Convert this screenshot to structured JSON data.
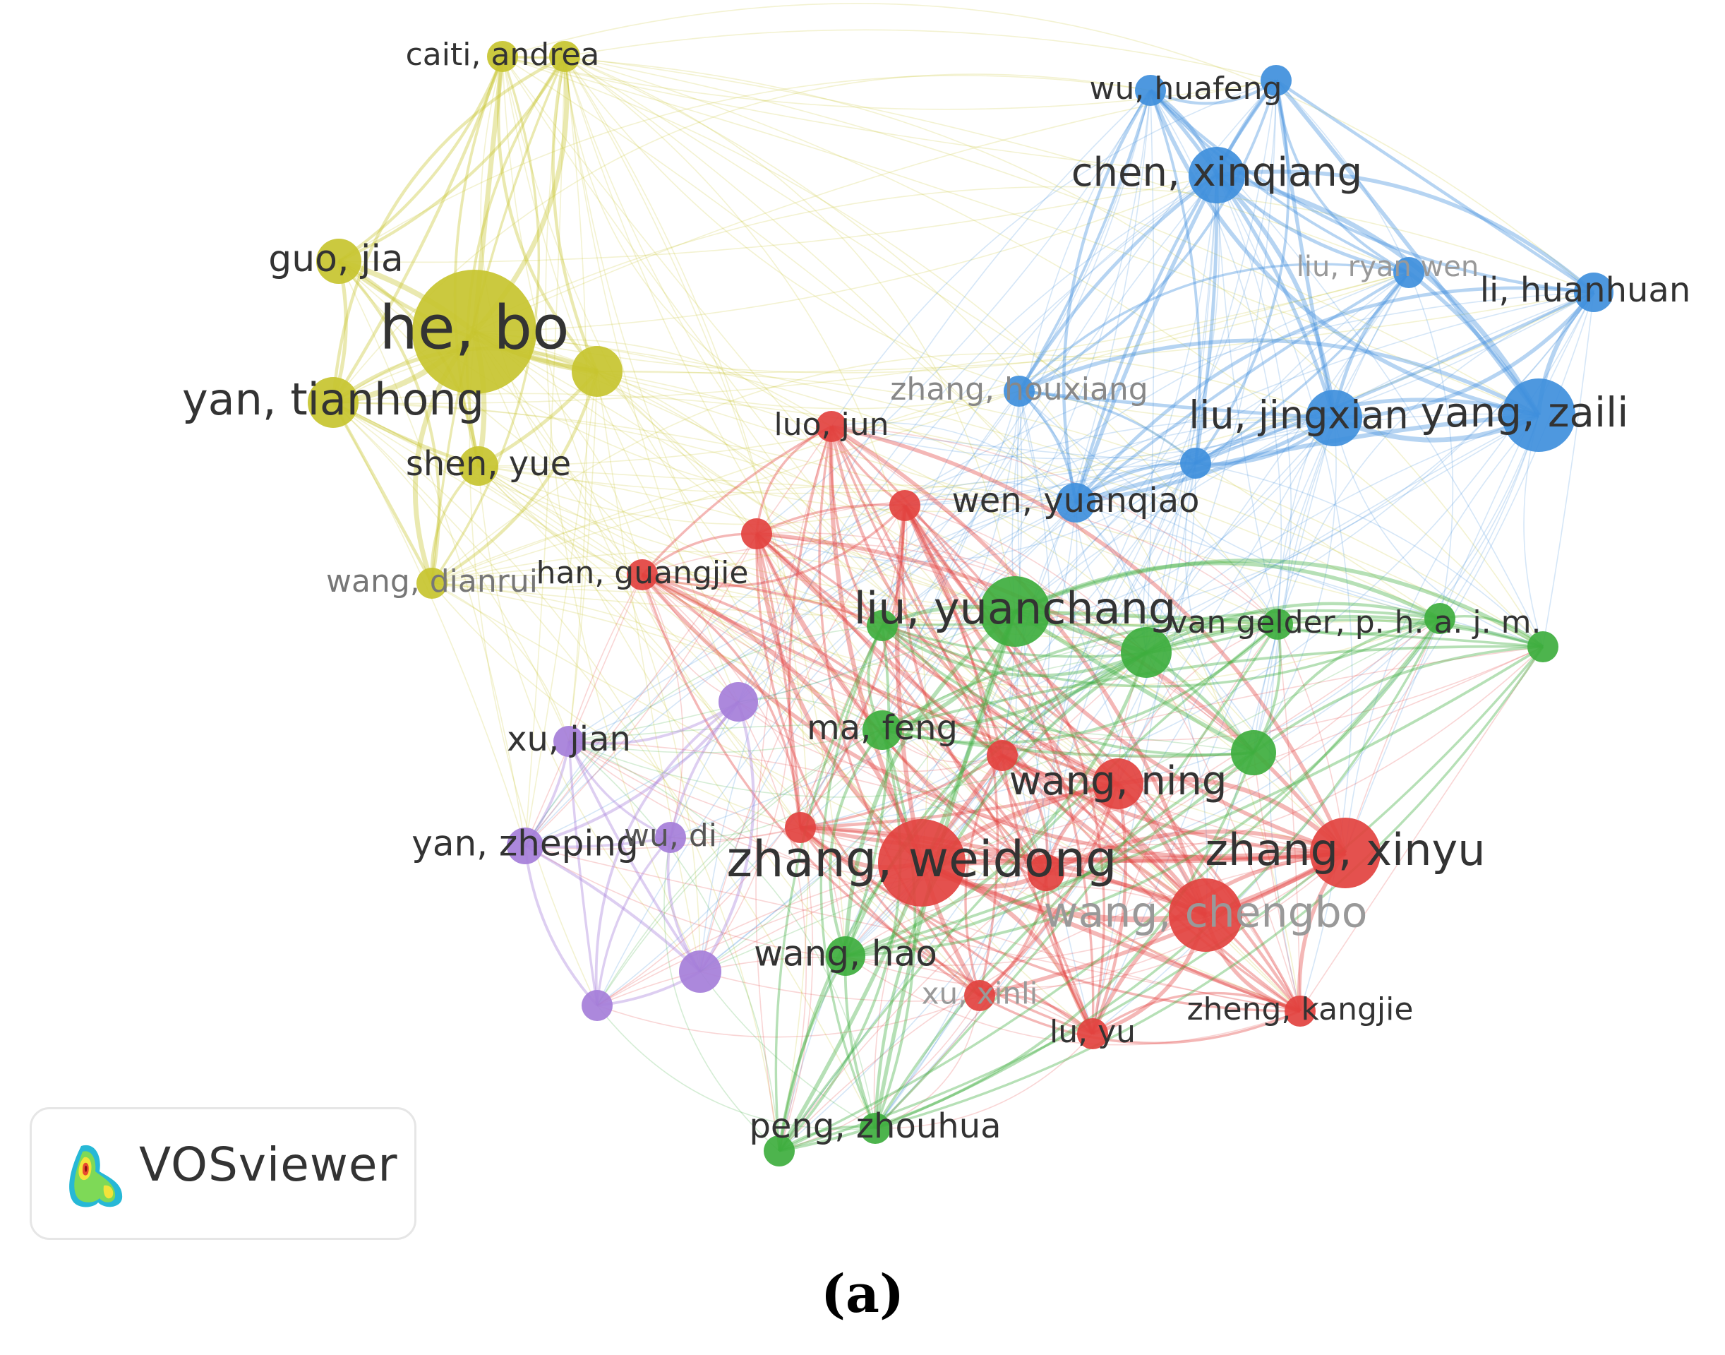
{
  "clusters": {
    "yellow": {
      "color": "#c7c42f"
    },
    "blue": {
      "color": "#3f8fdc"
    },
    "red": {
      "color": "#e2423f"
    },
    "green": {
      "color": "#3eae3e"
    },
    "purple": {
      "color": "#a57ed9"
    }
  },
  "nodes": [
    {
      "id": "caiti_andrea",
      "label": "caiti, andrea",
      "cluster": "yellow",
      "weight": 2
    },
    {
      "id": "caiti_2",
      "label": "",
      "cluster": "yellow",
      "weight": 2
    },
    {
      "id": "guo_jia",
      "label": "guo, jia",
      "cluster": "yellow",
      "weight": 4
    },
    {
      "id": "he_bo",
      "label": "he, bo",
      "cluster": "yellow",
      "weight": 12
    },
    {
      "id": "yellow_hub",
      "label": "",
      "cluster": "yellow",
      "weight": 5
    },
    {
      "id": "yan_tianhong",
      "label": "yan, tianhong",
      "cluster": "yellow",
      "weight": 5
    },
    {
      "id": "shen_yue",
      "label": "shen, yue",
      "cluster": "yellow",
      "weight": 3
    },
    {
      "id": "wang_dianrui",
      "label": "wang, dianrui",
      "cluster": "yellow",
      "weight": 2
    },
    {
      "id": "wu_huafeng",
      "label": "wu, huafeng",
      "cluster": "blue",
      "weight": 3
    },
    {
      "id": "wu_huafeng_2",
      "label": "",
      "cluster": "blue",
      "weight": 3
    },
    {
      "id": "chen_xinqiang",
      "label": "chen, xinqiang",
      "cluster": "blue",
      "weight": 6
    },
    {
      "id": "liu_ryan_wen",
      "label": "liu, ryan wen",
      "cluster": "blue",
      "weight": 2
    },
    {
      "id": "li_huanhuan",
      "label": "li, huanhuan",
      "cluster": "blue",
      "weight": 4
    },
    {
      "id": "zhang_houxiang",
      "label": "zhang, houxiang",
      "cluster": "blue",
      "weight": 2
    },
    {
      "id": "liu_jingxian",
      "label": "liu, jingxian",
      "cluster": "blue",
      "weight": 6
    },
    {
      "id": "yang_zaili",
      "label": "yang, zaili",
      "cluster": "blue",
      "weight": 8
    },
    {
      "id": "blue_small",
      "label": "",
      "cluster": "blue",
      "weight": 2
    },
    {
      "id": "wen_yuanqiao",
      "label": "wen, yuanqiao",
      "cluster": "blue",
      "weight": 4
    },
    {
      "id": "luo_jun",
      "label": "luo, jun",
      "cluster": "red",
      "weight": 2
    },
    {
      "id": "red_a",
      "label": "",
      "cluster": "red",
      "weight": 2
    },
    {
      "id": "red_b",
      "label": "",
      "cluster": "red",
      "weight": 2
    },
    {
      "id": "han_guangjie",
      "label": "han, guangjie",
      "cluster": "red",
      "weight": 2
    },
    {
      "id": "red_c",
      "label": "",
      "cluster": "red",
      "weight": 2
    },
    {
      "id": "wang_ning",
      "label": "wang, ning",
      "cluster": "red",
      "weight": 5
    },
    {
      "id": "red_d",
      "label": "",
      "cluster": "red",
      "weight": 2
    },
    {
      "id": "zhang_weidong",
      "label": "zhang, weidong",
      "cluster": "red",
      "weight": 10
    },
    {
      "id": "red_e",
      "label": "",
      "cluster": "red",
      "weight": 3
    },
    {
      "id": "zhang_xinyu",
      "label": "zhang, xinyu",
      "cluster": "red",
      "weight": 8
    },
    {
      "id": "wang_chengbo",
      "label": "wang, chengbo",
      "cluster": "red",
      "weight": 8
    },
    {
      "id": "xu_xinli",
      "label": "xu, xinli",
      "cluster": "red",
      "weight": 2
    },
    {
      "id": "lu_yu",
      "label": "lu, yu",
      "cluster": "red",
      "weight": 2
    },
    {
      "id": "zheng_kangjie",
      "label": "zheng, kangjie",
      "cluster": "red",
      "weight": 2
    },
    {
      "id": "liu_yuanchang",
      "label": "liu, yuanchang",
      "cluster": "green",
      "weight": 8
    },
    {
      "id": "green_a",
      "label": "",
      "cluster": "green",
      "weight": 2
    },
    {
      "id": "green_b",
      "label": "",
      "cluster": "green",
      "weight": 5
    },
    {
      "id": "van_gelder",
      "label": "van gelder, p. h. a. j. m.",
      "cluster": "green",
      "weight": 2
    },
    {
      "id": "green_c",
      "label": "",
      "cluster": "green",
      "weight": 2
    },
    {
      "id": "green_d",
      "label": "",
      "cluster": "green",
      "weight": 2
    },
    {
      "id": "ma_feng",
      "label": "ma, feng",
      "cluster": "green",
      "weight": 3
    },
    {
      "id": "green_e",
      "label": "",
      "cluster": "green",
      "weight": 3
    },
    {
      "id": "wang_hao",
      "label": "wang, hao",
      "cluster": "green",
      "weight": 3
    },
    {
      "id": "peng_zhouhua",
      "label": "peng, zhouhua",
      "cluster": "green",
      "weight": 2
    },
    {
      "id": "green_f",
      "label": "",
      "cluster": "green",
      "weight": 2
    },
    {
      "id": "purple_a",
      "label": "",
      "cluster": "purple",
      "weight": 3
    },
    {
      "id": "xu_jian",
      "label": "xu, jian",
      "cluster": "purple",
      "weight": 2
    },
    {
      "id": "yan_zheping",
      "label": "yan, zheping",
      "cluster": "purple",
      "weight": 3
    },
    {
      "id": "wu_di",
      "label": "wu, di",
      "cluster": "purple",
      "weight": 2
    },
    {
      "id": "purple_b",
      "label": "",
      "cluster": "purple",
      "weight": 3
    },
    {
      "id": "purple_c",
      "label": "",
      "cluster": "purple",
      "weight": 2
    }
  ],
  "logo": {
    "text": "VOSviewer"
  },
  "caption": "(a)"
}
